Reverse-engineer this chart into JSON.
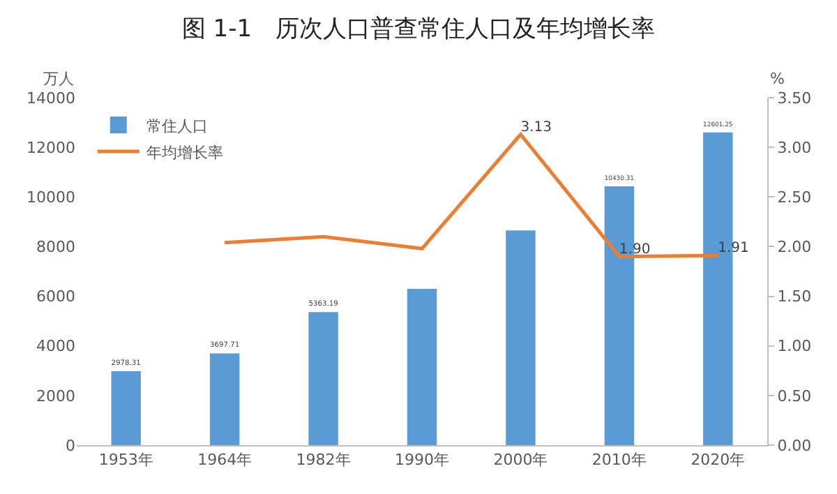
{
  "chart_data": {
    "type": "bar",
    "title": "图 1-1　历次人口普查常住人口及年均增长率",
    "categories": [
      "1953年",
      "1964年",
      "1982年",
      "1990年",
      "2000年",
      "2010年",
      "2020年"
    ],
    "series": [
      {
        "name": "常住人口",
        "color": "#5b9bd5",
        "values": [
          2978.31,
          3697.71,
          5363.19,
          6300,
          8650,
          10430.31,
          12601.25
        ],
        "value_labels": [
          "2978.31",
          "3697.71",
          "5363.19",
          null,
          null,
          "10430.31",
          "12601.25"
        ]
      },
      {
        "name": "年均增长率",
        "type": "line",
        "axis": "y2",
        "color": "#ed7d31",
        "values": [
          null,
          2.04,
          2.1,
          1.98,
          3.13,
          1.9,
          1.91
        ],
        "value_labels": [
          null,
          null,
          null,
          null,
          "3.13",
          "1.90",
          "1.91"
        ]
      }
    ],
    "ylabel": "万人",
    "y2label": "%",
    "ylim": [
      0,
      14000
    ],
    "yticks": [
      0,
      2000,
      4000,
      6000,
      8000,
      10000,
      12000,
      14000
    ],
    "y2lim": [
      0,
      3.5
    ],
    "y2ticks": [
      {
        "value": 0,
        "label": "0.00"
      },
      {
        "value": 0.5,
        "label": "0.50"
      },
      {
        "value": 1,
        "label": "1.00"
      },
      {
        "value": 1.5,
        "label": "1.50"
      },
      {
        "value": 2,
        "label": "2.00"
      },
      {
        "value": 2.5,
        "label": "2.50"
      },
      {
        "value": 3,
        "label": "3.00"
      },
      {
        "value": 3.5,
        "label": "3.50"
      }
    ],
    "grid": false,
    "legend": "top left",
    "marker": "none",
    "line_style": "solid"
  }
}
